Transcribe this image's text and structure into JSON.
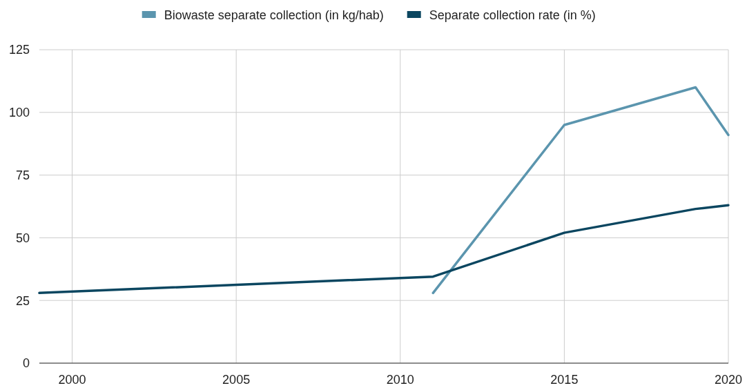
{
  "chart_data": {
    "type": "line",
    "x": [
      1999,
      2011,
      2015,
      2019,
      2020
    ],
    "series": [
      {
        "name": "Biowaste separate collection (in kg/hab)",
        "color": "#5b95ae",
        "values": [
          null,
          28,
          95,
          110,
          91
        ]
      },
      {
        "name": "Separate collection rate (in %)",
        "color": "#0b4660",
        "values": [
          28,
          34.5,
          52,
          61.5,
          63
        ]
      }
    ],
    "xlim": [
      1999,
      2020
    ],
    "xticks": [
      2000,
      2005,
      2010,
      2015,
      2020
    ],
    "ylim": [
      0,
      125
    ],
    "yticks": [
      0,
      25,
      50,
      75,
      100,
      125
    ],
    "grid": true,
    "legend": "top"
  }
}
